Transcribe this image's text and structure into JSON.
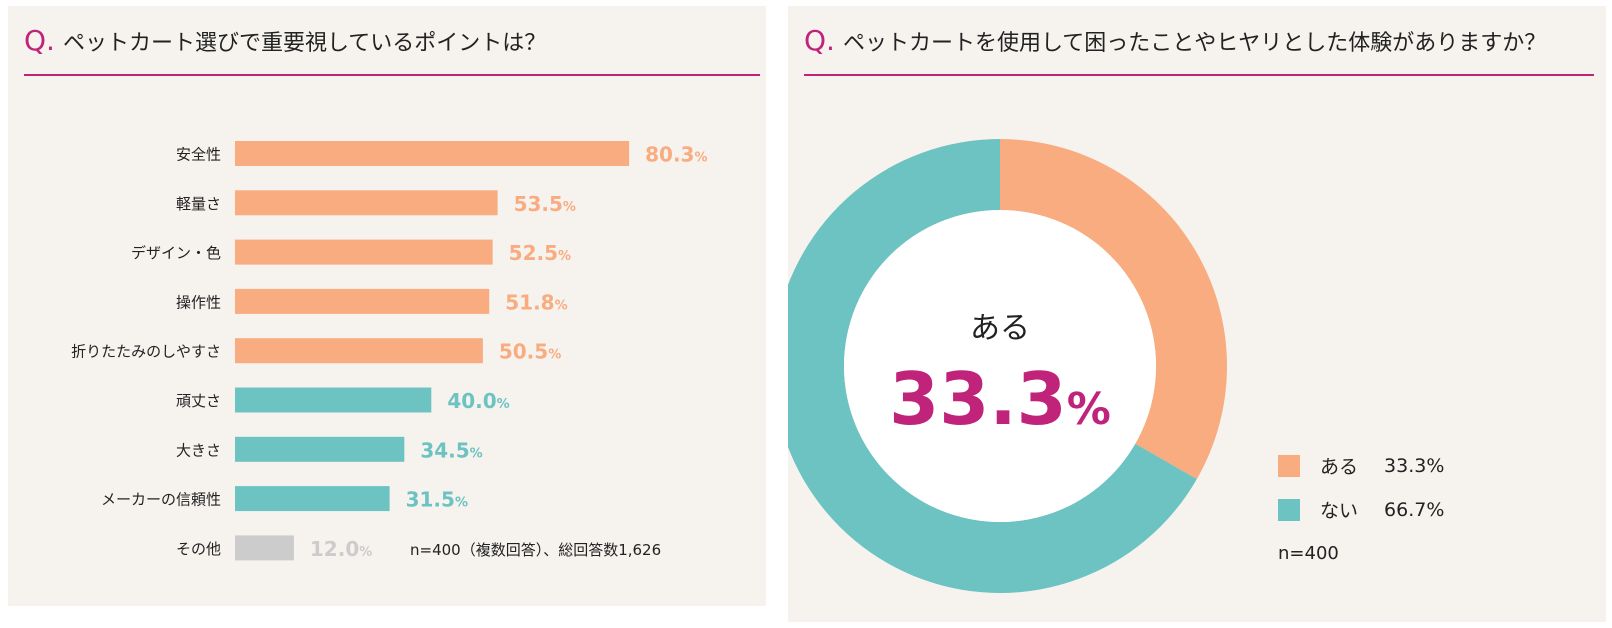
{
  "colors": {
    "accent": "#c0247a",
    "orange": "#f8ac80",
    "teal": "#6cc3c1",
    "gray": "#cccccc",
    "panel": "#f6f3ef"
  },
  "left": {
    "q_mark": "Q.",
    "title": "ペットカート選びで重要視しているポイントは？",
    "footnote": "n=400（複数回答）、総回答数1,626"
  },
  "right": {
    "q_mark": "Q.",
    "title": "ペットカートを使用して困ったことやヒヤリとした体験がありますか？",
    "center_label": "ある",
    "center_value": "33.3",
    "center_unit": "%",
    "legend": [
      {
        "label": "ある",
        "value": "33.3%",
        "color": "#f8ac80"
      },
      {
        "label": "ない",
        "value": "66.7%",
        "color": "#6cc3c1"
      }
    ],
    "n_label": "n=400"
  },
  "chart_data": [
    {
      "type": "bar",
      "orientation": "horizontal",
      "title": "ペットカート選びで重要視しているポイントは？",
      "unit": "%",
      "categories": [
        "安全性",
        "軽量さ",
        "デザイン・色",
        "操作性",
        "折りたたみのしやすさ",
        "頑丈さ",
        "大きさ",
        "メーカーの信頼性",
        "その他"
      ],
      "values": [
        80.3,
        53.5,
        52.5,
        51.8,
        50.5,
        40.0,
        34.5,
        31.5,
        12.0
      ],
      "labels": [
        "80.3",
        "53.5",
        "52.5",
        "51.8",
        "50.5",
        "40.0",
        "34.5",
        "31.5",
        "12.0"
      ],
      "colors": [
        "#f8ac80",
        "#f8ac80",
        "#f8ac80",
        "#f8ac80",
        "#f8ac80",
        "#6cc3c1",
        "#6cc3c1",
        "#6cc3c1",
        "#cccccc"
      ],
      "xlim": [
        0,
        100
      ]
    },
    {
      "type": "pie",
      "donut": true,
      "title": "ペットカートを使用して困ったことやヒヤリとした体験がありますか？",
      "categories": [
        "ある",
        "ない"
      ],
      "values": [
        33.3,
        66.7
      ],
      "colors": [
        "#f8ac80",
        "#6cc3c1"
      ]
    }
  ]
}
